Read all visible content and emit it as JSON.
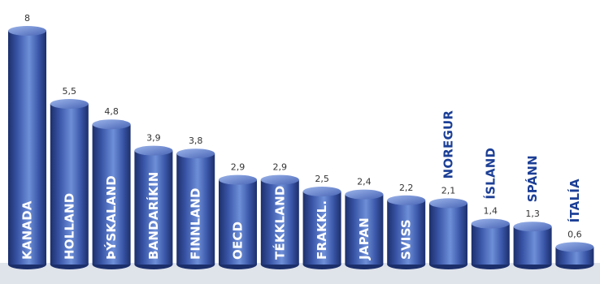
{
  "chart_data": {
    "type": "bar",
    "categories": [
      "KANADA",
      "HOLLAND",
      "ÞÝSKALAND",
      "BANDARÍKIN",
      "FINNLAND",
      "OECD",
      "TÉKKLAND",
      "FRAKKL.",
      "JAPAN",
      "SVISS",
      "NOREGUR",
      "ÍSLAND",
      "SPÁNN",
      "ÍTALÍA"
    ],
    "values": [
      8,
      5.5,
      4.8,
      3.9,
      3.8,
      2.9,
      2.9,
      2.5,
      2.4,
      2.2,
      2.1,
      1.4,
      1.3,
      0.6
    ],
    "value_labels": [
      "8",
      "5,5",
      "4,8",
      "3,9",
      "3,8",
      "2,9",
      "2,9",
      "2,5",
      "2,4",
      "2,2",
      "2,1",
      "1,4",
      "1,3",
      "0,6"
    ],
    "ylim": [
      0,
      8
    ],
    "grid": false,
    "style": "3d-cylinder"
  },
  "colors": {
    "bar_dark": "#1c2f6b",
    "bar_mid": "#3a56a8",
    "bar_light": "#6e8fd8",
    "top_light": "#7f9ee0",
    "label_inside": "#ffffff",
    "label_outside": "#1c3f96",
    "floor": "#dfe3ea"
  }
}
